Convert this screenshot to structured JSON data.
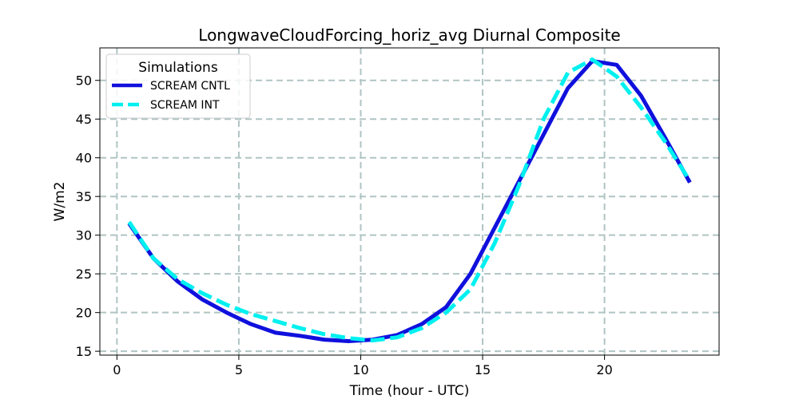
{
  "chart_data": {
    "type": "line",
    "title": "LongwaveCloudForcing_horiz_avg Diurnal Composite",
    "xlabel": "Time (hour - UTC)",
    "ylabel": "W/m2",
    "xlim": [
      -0.7,
      24.7
    ],
    "ylim": [
      14.5,
      54.2
    ],
    "xticks": [
      0,
      5,
      10,
      15,
      20
    ],
    "yticks": [
      15,
      20,
      25,
      30,
      35,
      40,
      45,
      50
    ],
    "grid": true,
    "legend": {
      "title": "Simulations",
      "placement": "top-left"
    },
    "series": [
      {
        "name": "SCREAM CNTL",
        "color": "#1010dd",
        "style": "solid",
        "x": [
          0.5,
          1.5,
          2.5,
          3.5,
          4.5,
          5.5,
          6.5,
          7.5,
          8.5,
          9.5,
          10.5,
          11.5,
          12.5,
          13.5,
          14.5,
          15.5,
          16.5,
          17.5,
          18.5,
          19.5,
          20.5,
          21.5,
          22.5,
          23.5
        ],
        "values": [
          31.5,
          27.0,
          24.0,
          21.7,
          20.0,
          18.5,
          17.4,
          17.0,
          16.5,
          16.3,
          16.5,
          17.1,
          18.5,
          20.7,
          25.0,
          31.0,
          37.0,
          43.0,
          49.0,
          52.5,
          52.0,
          48.0,
          42.5,
          36.8
        ]
      },
      {
        "name": "SCREAM INT",
        "color": "#00f0f0",
        "style": "dashed",
        "x": [
          0.5,
          1.5,
          2.5,
          3.5,
          4.5,
          5.5,
          6.5,
          7.5,
          8.5,
          9.5,
          10.5,
          11.5,
          12.5,
          13.5,
          14.5,
          15.5,
          16.5,
          17.5,
          18.5,
          19.5,
          20.5,
          21.5,
          22.5,
          23.5
        ],
        "values": [
          31.7,
          27.0,
          24.3,
          22.5,
          21.0,
          19.8,
          18.9,
          18.0,
          17.2,
          16.7,
          16.4,
          16.8,
          18.0,
          20.0,
          23.0,
          29.0,
          36.5,
          45.0,
          51.0,
          52.7,
          50.5,
          46.5,
          42.0,
          37.0
        ]
      }
    ]
  }
}
